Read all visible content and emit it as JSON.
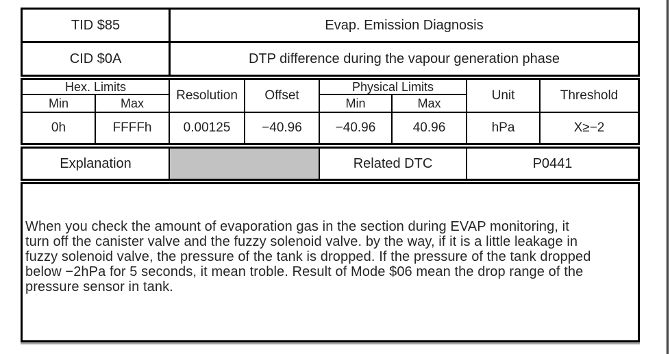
{
  "table": {
    "row_tid": {
      "label": "TID $85",
      "title": "Evap. Emission Diagnosis"
    },
    "row_cid": {
      "label": "CID $0A",
      "title": "DTP difference during the vapour generation phase"
    },
    "header": {
      "hex_limits": "Hex. Limits",
      "physical_limits": "Physical Limits",
      "hex_min": "Min",
      "hex_max": "Max",
      "phys_min": "Min",
      "phys_max": "Max",
      "resolution": "Resolution",
      "offset": "Offset",
      "unit": "Unit",
      "threshold": "Threshold"
    },
    "values": {
      "hex_min": "0h",
      "hex_max": "FFFFh",
      "resolution": "0.00125",
      "offset": "−40.96",
      "phys_min": "−40.96",
      "phys_max": "40.96",
      "unit": "hPa",
      "threshold": "X≥−2"
    },
    "explanation_row": {
      "label": "Explanation",
      "related_dtc_label": "Related DTC",
      "related_dtc_value": "P0441"
    },
    "colors": {
      "gray_cell": "#c2c2c2",
      "border": "#000000",
      "shadow": "#a6a6a6"
    }
  },
  "explanation": {
    "lines": [
      "When you check the amount of evaporation gas in the section during EVAP monitoring, it",
      "turn off the canister valve and the fuzzy solenoid valve. by the way, if it is a little leakage in",
      "fuzzy solenoid valve, the pressure of the tank is dropped. If the pressure of the tank dropped",
      "below −2hPa for 5 seconds, it mean troble. Result of Mode $06 mean the drop range of the",
      "pressure sensor in tank."
    ]
  }
}
